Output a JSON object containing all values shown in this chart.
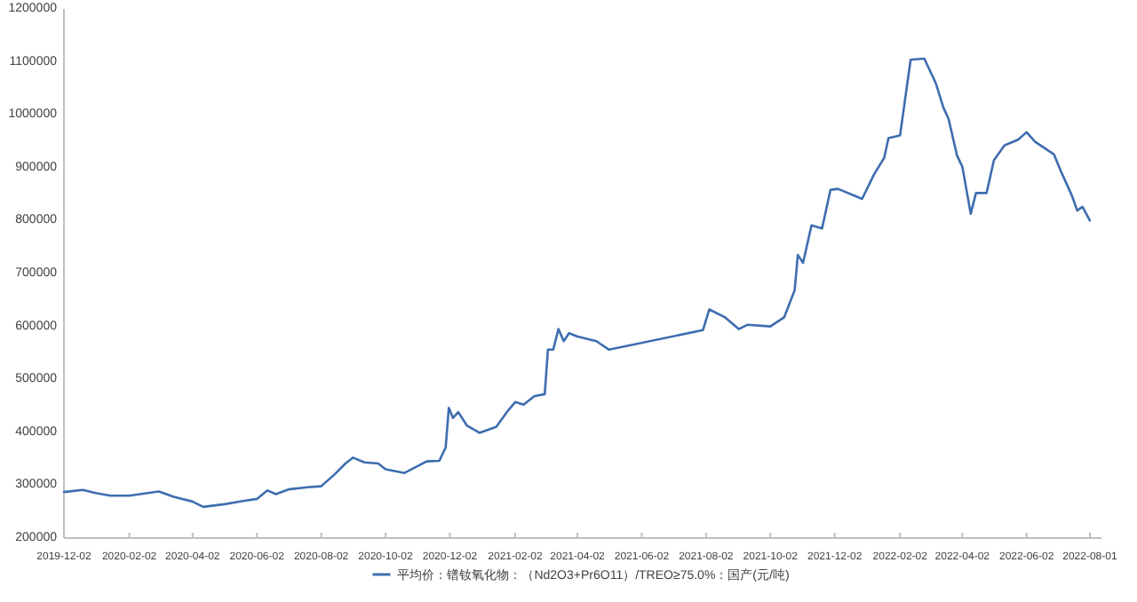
{
  "chart_data": {
    "type": "line",
    "x": [
      "2019-12-02",
      "2019-12-20",
      "2020-01-01",
      "2020-01-15",
      "2020-02-02",
      "2020-03-01",
      "2020-03-15",
      "2020-04-02",
      "2020-04-12",
      "2020-05-02",
      "2020-05-20",
      "2020-06-02",
      "2020-06-12",
      "2020-06-20",
      "2020-07-02",
      "2020-07-20",
      "2020-08-02",
      "2020-08-15",
      "2020-08-25",
      "2020-09-01",
      "2020-09-12",
      "2020-09-25",
      "2020-10-02",
      "2020-10-20",
      "2020-11-10",
      "2020-11-22",
      "2020-11-28",
      "2020-12-01",
      "2020-12-05",
      "2020-12-10",
      "2020-12-18",
      "2020-12-30",
      "2021-01-15",
      "2021-01-25",
      "2021-02-02",
      "2021-02-10",
      "2021-02-20",
      "2021-03-02",
      "2021-03-05",
      "2021-03-10",
      "2021-03-15",
      "2021-03-20",
      "2021-03-25",
      "2021-04-02",
      "2021-04-20",
      "2021-05-02",
      "2021-07-30",
      "2021-08-05",
      "2021-08-20",
      "2021-09-02",
      "2021-09-10",
      "2021-10-02",
      "2021-10-15",
      "2021-10-25",
      "2021-10-28",
      "2021-11-02",
      "2021-11-10",
      "2021-11-20",
      "2021-11-28",
      "2021-12-05",
      "2021-12-28",
      "2022-01-08",
      "2022-01-18",
      "2022-01-22",
      "2022-02-02",
      "2022-02-12",
      "2022-02-25",
      "2022-03-08",
      "2022-03-15",
      "2022-03-20",
      "2022-03-28",
      "2022-04-02",
      "2022-04-10",
      "2022-04-15",
      "2022-04-25",
      "2022-05-02",
      "2022-05-12",
      "2022-05-25",
      "2022-06-02",
      "2022-06-10",
      "2022-06-28",
      "2022-07-05",
      "2022-07-15",
      "2022-07-20",
      "2022-07-25",
      "2022-08-01"
    ],
    "series": [
      {
        "name": "平均价：镨钕氧化物：（Nd2O3+Pr6O11）/TREO≥75.0%：国产(元/吨)",
        "color": "#3e6db0",
        "values": [
          287000,
          291000,
          285000,
          280000,
          280000,
          288000,
          278000,
          269000,
          259000,
          264000,
          270000,
          274000,
          290000,
          283000,
          292000,
          296000,
          298000,
          321000,
          341000,
          352000,
          343000,
          341000,
          330000,
          323000,
          345000,
          346000,
          371000,
          446000,
          427000,
          438000,
          413000,
          399000,
          410000,
          438000,
          457000,
          452000,
          468000,
          472000,
          556000,
          556000,
          595000,
          572000,
          587000,
          581000,
          572000,
          556000,
          593000,
          632000,
          617000,
          595000,
          603000,
          600000,
          617000,
          668000,
          735000,
          720000,
          791000,
          785000,
          858000,
          860000,
          841000,
          886000,
          919000,
          956000,
          961000,
          1104000,
          1106000,
          1059000,
          1014000,
          992000,
          923000,
          902000,
          813000,
          852000,
          852000,
          914000,
          942000,
          953000,
          967000,
          949000,
          925000,
          891000,
          847000,
          819000,
          826000,
          800000
        ]
      }
    ],
    "xlim": [
      "2019-12-02",
      "2022-08-12"
    ],
    "xticks": [
      "2019-12-02",
      "2020-02-02",
      "2020-04-02",
      "2020-06-02",
      "2020-08-02",
      "2020-10-02",
      "2020-12-02",
      "2021-02-02",
      "2021-04-02",
      "2021-06-02",
      "2021-08-02",
      "2021-10-02",
      "2021-12-02",
      "2022-02-02",
      "2022-04-02",
      "2022-06-02",
      "2022-08-01"
    ],
    "ylim": [
      200000,
      1200000
    ],
    "yticks": [
      200000,
      300000,
      400000,
      500000,
      600000,
      700000,
      800000,
      900000,
      1000000,
      1100000,
      1200000
    ],
    "legend": "bottom",
    "grid": false,
    "marker": "none",
    "line_style": "solid"
  }
}
